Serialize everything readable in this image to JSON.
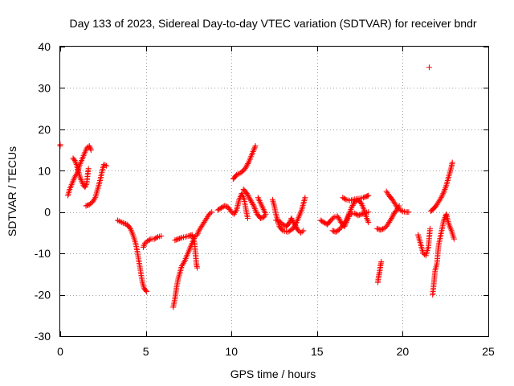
{
  "chart_data": {
    "type": "scatter",
    "title": "Day 133 of 2023, Sidereal Day-to-day VTEC variation (SDTVAR) for receiver bndr",
    "xlabel": "GPS time / hours",
    "ylabel": "SDTVAR / TECUs",
    "xlim": [
      0,
      25
    ],
    "ylim": [
      -30,
      40
    ],
    "xticks": [
      0,
      5,
      10,
      15,
      20,
      25
    ],
    "yticks": [
      -30,
      -20,
      -10,
      0,
      10,
      20,
      30,
      40
    ],
    "grid": true,
    "marker": "plus",
    "color": "#ff0000",
    "segments": [
      {
        "name": "arc-1",
        "points": [
          [
            0.0,
            16.3
          ],
          [
            0.0,
            16.0
          ]
        ]
      },
      {
        "name": "arc-2",
        "points": [
          [
            0.45,
            4.0
          ],
          [
            0.55,
            5.5
          ],
          [
            0.7,
            7.0
          ],
          [
            0.85,
            8.5
          ],
          [
            1.0,
            9.5
          ],
          [
            1.1,
            11.0
          ],
          [
            1.25,
            12.5
          ],
          [
            1.4,
            14.0
          ],
          [
            1.55,
            15.5
          ],
          [
            1.7,
            16.0
          ],
          [
            1.8,
            15.0
          ]
        ]
      },
      {
        "name": "arc-3",
        "points": [
          [
            0.75,
            13.0
          ],
          [
            0.85,
            12.5
          ],
          [
            0.95,
            11.5
          ],
          [
            1.05,
            10.0
          ],
          [
            1.15,
            8.5
          ],
          [
            1.25,
            7.5
          ],
          [
            1.35,
            6.5
          ],
          [
            1.45,
            6.0
          ],
          [
            1.55,
            7.0
          ],
          [
            1.6,
            9.0
          ],
          [
            1.65,
            10.5
          ]
        ]
      },
      {
        "name": "arc-4",
        "points": [
          [
            1.5,
            1.5
          ],
          [
            1.7,
            1.8
          ],
          [
            1.9,
            2.5
          ],
          [
            2.05,
            3.5
          ],
          [
            2.15,
            5.0
          ],
          [
            2.25,
            6.5
          ],
          [
            2.35,
            8.0
          ],
          [
            2.45,
            10.0
          ],
          [
            2.55,
            11.5
          ],
          [
            2.7,
            11.2
          ]
        ]
      },
      {
        "name": "arc-5",
        "points": [
          [
            3.35,
            -2.0
          ],
          [
            3.6,
            -2.5
          ],
          [
            3.9,
            -3.0
          ],
          [
            4.1,
            -4.0
          ],
          [
            4.25,
            -5.5
          ],
          [
            4.4,
            -7.5
          ],
          [
            4.5,
            -9.5
          ],
          [
            4.6,
            -12.0
          ],
          [
            4.7,
            -14.5
          ],
          [
            4.8,
            -17.0
          ],
          [
            4.9,
            -18.5
          ],
          [
            5.05,
            -19.2
          ]
        ]
      },
      {
        "name": "arc-6",
        "points": [
          [
            4.85,
            -8.5
          ],
          [
            4.95,
            -7.5
          ],
          [
            5.1,
            -7.0
          ],
          [
            5.3,
            -6.5
          ],
          [
            5.5,
            -6.5
          ],
          [
            5.7,
            -6.0
          ],
          [
            5.9,
            -5.8
          ]
        ]
      },
      {
        "name": "arc-7",
        "points": [
          [
            6.6,
            -23.0
          ],
          [
            6.7,
            -21.0
          ],
          [
            6.8,
            -18.0
          ],
          [
            6.9,
            -16.0
          ],
          [
            7.0,
            -14.5
          ],
          [
            7.1,
            -13.0
          ],
          [
            7.25,
            -12.0
          ],
          [
            7.4,
            -10.5
          ],
          [
            7.55,
            -9.0
          ],
          [
            7.7,
            -7.5
          ],
          [
            7.85,
            -6.0
          ],
          [
            8.0,
            -5.5
          ],
          [
            8.1,
            -4.5
          ],
          [
            8.25,
            -3.5
          ],
          [
            8.4,
            -2.5
          ],
          [
            8.55,
            -1.5
          ],
          [
            8.7,
            -0.5
          ],
          [
            8.85,
            0.0
          ]
        ]
      },
      {
        "name": "arc-8",
        "points": [
          [
            6.7,
            -6.8
          ],
          [
            6.9,
            -6.5
          ],
          [
            7.1,
            -6.2
          ],
          [
            7.3,
            -6.0
          ],
          [
            7.5,
            -5.8
          ],
          [
            7.7,
            -5.5
          ],
          [
            7.85,
            -7.5
          ],
          [
            7.9,
            -10.0
          ],
          [
            7.95,
            -12.5
          ],
          [
            8.0,
            -13.5
          ]
        ]
      },
      {
        "name": "arc-9",
        "points": [
          [
            9.2,
            0.5
          ],
          [
            9.4,
            1.0
          ],
          [
            9.6,
            1.5
          ],
          [
            9.8,
            1.2
          ],
          [
            10.0,
            0.0
          ],
          [
            10.15,
            -0.5
          ],
          [
            10.3,
            0.5
          ],
          [
            10.45,
            3.0
          ],
          [
            10.6,
            4.5
          ],
          [
            10.75,
            3.0
          ],
          [
            10.85,
            0.5
          ],
          [
            10.95,
            -1.5
          ]
        ]
      },
      {
        "name": "arc-10",
        "points": [
          [
            10.1,
            8.0
          ],
          [
            10.3,
            9.0
          ],
          [
            10.55,
            9.5
          ],
          [
            10.8,
            10.5
          ],
          [
            11.0,
            12.0
          ],
          [
            11.15,
            13.5
          ],
          [
            11.3,
            15.0
          ],
          [
            11.4,
            16.0
          ]
        ]
      },
      {
        "name": "arc-11",
        "points": [
          [
            10.7,
            5.5
          ],
          [
            10.9,
            4.5
          ],
          [
            11.1,
            3.0
          ],
          [
            11.3,
            1.5
          ],
          [
            11.5,
            -0.5
          ],
          [
            11.7,
            -1.5
          ],
          [
            11.9,
            -1.2
          ],
          [
            12.0,
            -0.5
          ],
          [
            11.55,
            3.5
          ]
        ]
      },
      {
        "name": "arc-12",
        "points": [
          [
            12.4,
            3.0
          ],
          [
            12.5,
            1.5
          ],
          [
            12.6,
            -0.5
          ],
          [
            12.7,
            -2.0
          ],
          [
            12.8,
            -3.5
          ],
          [
            13.0,
            -4.5
          ],
          [
            13.3,
            -4.8
          ],
          [
            13.6,
            -4.0
          ],
          [
            13.8,
            -2.5
          ],
          [
            13.95,
            -1.0
          ],
          [
            14.1,
            0.5
          ],
          [
            14.2,
            2.0
          ],
          [
            14.3,
            3.5
          ]
        ]
      },
      {
        "name": "arc-13",
        "points": [
          [
            12.6,
            -2.0
          ],
          [
            12.8,
            -2.2
          ],
          [
            13.0,
            -3.0
          ],
          [
            13.2,
            -3.5
          ],
          [
            13.4,
            -2.5
          ],
          [
            13.5,
            -1.5
          ],
          [
            13.7,
            -3.0
          ],
          [
            13.9,
            -4.5
          ],
          [
            14.05,
            -5.0
          ],
          [
            14.2,
            -4.5
          ]
        ]
      },
      {
        "name": "arc-14",
        "points": [
          [
            15.2,
            -2.0
          ],
          [
            15.4,
            -2.5
          ],
          [
            15.6,
            -3.0
          ],
          [
            15.8,
            -2.0
          ],
          [
            16.0,
            -1.2
          ],
          [
            16.2,
            -1.0
          ],
          [
            16.4,
            -2.5
          ],
          [
            16.6,
            -3.5
          ],
          [
            16.8,
            -1.5
          ],
          [
            17.0,
            1.0
          ],
          [
            17.2,
            2.5
          ],
          [
            17.4,
            3.0
          ],
          [
            17.6,
            2.0
          ],
          [
            17.75,
            0.5
          ],
          [
            17.9,
            -1.5
          ],
          [
            18.0,
            -2.5
          ]
        ]
      },
      {
        "name": "arc-15",
        "points": [
          [
            15.9,
            -4.5
          ],
          [
            16.1,
            -4.8
          ],
          [
            16.3,
            -4.2
          ],
          [
            16.55,
            -3.0
          ],
          [
            16.7,
            -2.0
          ],
          [
            16.85,
            -0.5
          ],
          [
            17.0,
            -0.5
          ],
          [
            17.2,
            -0.3
          ],
          [
            17.4,
            -0.8
          ],
          [
            17.6,
            -0.5
          ],
          [
            17.8,
            -0.2
          ],
          [
            18.0,
            0.0
          ]
        ]
      },
      {
        "name": "arc-16",
        "points": [
          [
            16.5,
            3.5
          ],
          [
            16.7,
            3.0
          ],
          [
            16.9,
            2.8
          ],
          [
            17.1,
            3.0
          ],
          [
            17.3,
            3.2
          ],
          [
            17.5,
            3.3
          ],
          [
            17.7,
            3.5
          ],
          [
            17.9,
            3.8
          ],
          [
            18.0,
            4.0
          ]
        ]
      },
      {
        "name": "arc-17",
        "points": [
          [
            18.55,
            -17.0
          ],
          [
            18.6,
            -15.5
          ],
          [
            18.65,
            -14.5
          ],
          [
            18.7,
            -13.0
          ],
          [
            18.75,
            -12.0
          ]
        ]
      },
      {
        "name": "arc-18",
        "points": [
          [
            18.5,
            -4.0
          ],
          [
            18.7,
            -4.3
          ],
          [
            18.9,
            -4.0
          ],
          [
            19.05,
            -3.5
          ],
          [
            19.2,
            -2.5
          ],
          [
            19.35,
            -1.5
          ],
          [
            19.5,
            -0.3
          ],
          [
            19.65,
            0.5
          ],
          [
            19.8,
            1.5
          ]
        ]
      },
      {
        "name": "arc-19",
        "points": [
          [
            19.05,
            5.0
          ],
          [
            19.2,
            4.0
          ],
          [
            19.4,
            3.0
          ],
          [
            19.55,
            2.0
          ],
          [
            19.7,
            1.0
          ],
          [
            19.85,
            0.5
          ],
          [
            20.0,
            0.2
          ],
          [
            20.2,
            0.0
          ],
          [
            20.35,
            0.0
          ]
        ]
      },
      {
        "name": "arc-20",
        "points": [
          [
            20.9,
            -5.5
          ],
          [
            21.0,
            -7.0
          ],
          [
            21.1,
            -8.5
          ],
          [
            21.2,
            -10.0
          ],
          [
            21.35,
            -10.5
          ],
          [
            21.5,
            -8.5
          ],
          [
            21.55,
            -6.0
          ],
          [
            21.6,
            -4.0
          ]
        ]
      },
      {
        "name": "arc-21",
        "points": [
          [
            21.65,
            0.2
          ],
          [
            21.8,
            0.8
          ],
          [
            21.95,
            1.5
          ],
          [
            22.1,
            2.5
          ],
          [
            22.25,
            3.5
          ],
          [
            22.4,
            4.8
          ],
          [
            22.55,
            6.5
          ],
          [
            22.65,
            8.0
          ],
          [
            22.75,
            9.5
          ],
          [
            22.85,
            11.0
          ],
          [
            22.9,
            12.0
          ]
        ]
      },
      {
        "name": "arc-22",
        "points": [
          [
            21.75,
            -20.0
          ],
          [
            21.8,
            -18.0
          ],
          [
            21.85,
            -16.0
          ],
          [
            21.9,
            -14.0
          ],
          [
            22.0,
            -12.5
          ],
          [
            22.05,
            -10.0
          ],
          [
            22.1,
            -8.0
          ],
          [
            22.2,
            -6.0
          ],
          [
            22.3,
            -4.0
          ],
          [
            22.4,
            -2.0
          ],
          [
            22.5,
            -1.0
          ],
          [
            22.55,
            -0.5
          ],
          [
            22.6,
            -1.5
          ],
          [
            22.7,
            -3.0
          ],
          [
            22.85,
            -4.5
          ],
          [
            23.0,
            -6.5
          ]
        ]
      },
      {
        "name": "arc-23",
        "points": [
          [
            21.55,
            35.0
          ]
        ]
      }
    ]
  }
}
